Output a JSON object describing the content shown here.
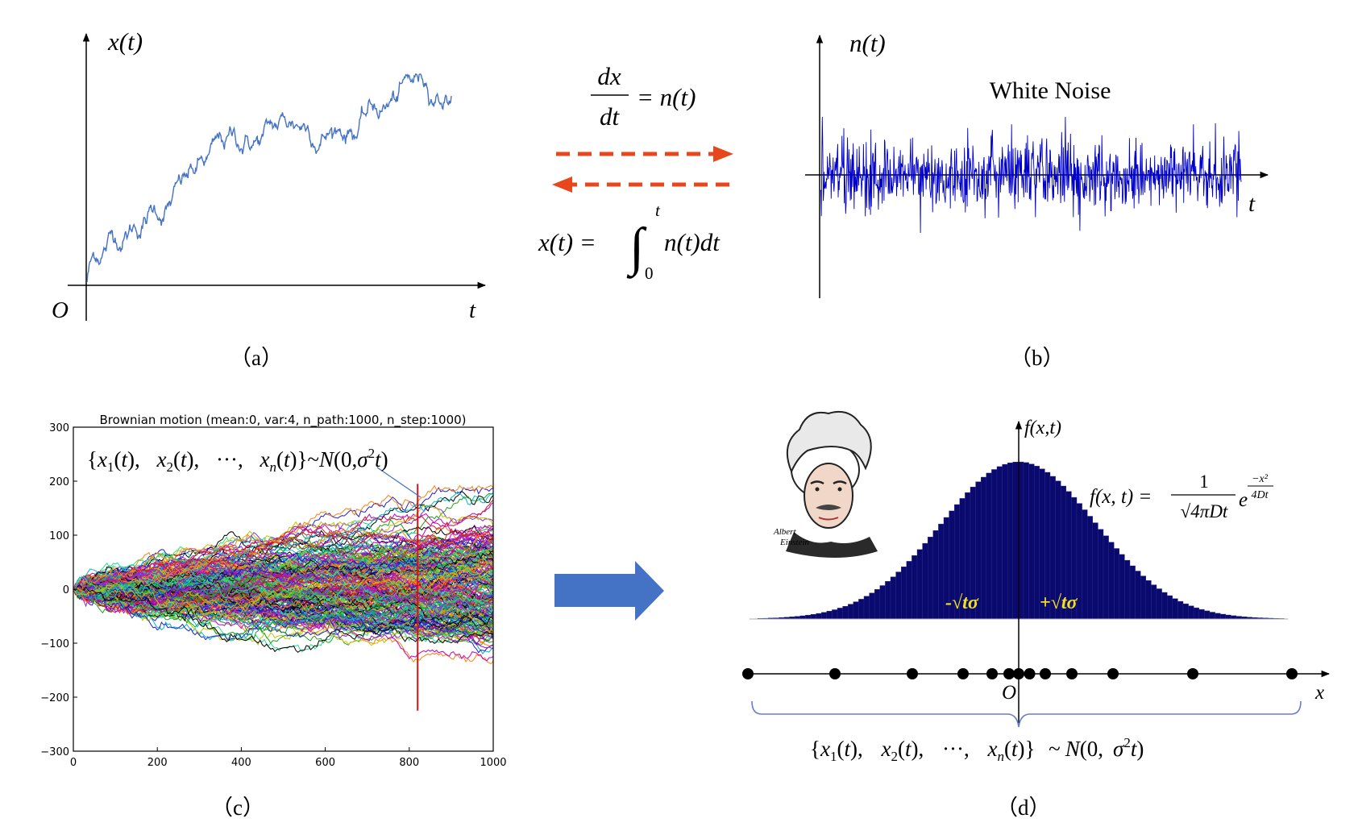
{
  "panels": {
    "a": {
      "caption": "（a）",
      "ylabel": "x(t)",
      "xlabel": "t",
      "origin": "O"
    },
    "b": {
      "caption": "（b）",
      "ylabel": "n(t)",
      "xlabel": "t",
      "title": "White Noise"
    },
    "relation": {
      "derivative_numerator": "dx",
      "derivative_denominator": "dt",
      "derivative_rhs": "= n(t)",
      "integral_lhs": "x(t) =",
      "integral_upper": "t",
      "integral_lower": "0",
      "integral_body": "n(t)dt"
    },
    "c": {
      "caption": "（c）",
      "title": "Brownian motion (mean:0, var:4, n_path:1000, n_step:1000)",
      "annotation": "{x1(t), x2(t), ..., xn(t)} ~ N(0, σ²t)",
      "xticks": [
        "0",
        "200",
        "400",
        "600",
        "800",
        "1000"
      ],
      "yticks": [
        "300",
        "200",
        "100",
        "0",
        "−100",
        "−200",
        "−300"
      ]
    },
    "d": {
      "caption": "（d）",
      "ylabel": "f(x,t)",
      "xlabel": "x",
      "origin": "O",
      "formula_lhs": "f(x, t) =",
      "formula_numerator": "1",
      "formula_denominator": "√4πDt",
      "formula_base": "e",
      "formula_exp_num": "−x²",
      "formula_exp_den": "4Dt",
      "minus_label": "-√tσ",
      "plus_label": "+√tσ",
      "bottom_formula": "{x1(t), x2(t), ..., xn(t)} ~ N(0, σ²t)",
      "portrait_signature_line1": "Albert",
      "portrait_signature_line2": "Einstein"
    }
  },
  "colors": {
    "path_blue": "#4472c4",
    "noise_blue": "#0000cc",
    "arrow_orange": "#e8461c",
    "big_arrow_blue": "#4472c4",
    "histogram_navy": "#0a0a6e",
    "sigma_yellow": "#f0e020",
    "marker_red": "#e01010",
    "brace_blue": "#6a7bd0"
  },
  "chart_data": [
    {
      "type": "line",
      "panel": "c",
      "title": "Brownian motion (mean:0, var:4, n_path:1000, n_step:1000)",
      "xlim": [
        0,
        1000
      ],
      "ylim": [
        -300,
        300
      ],
      "xticks": [
        0,
        200,
        400,
        600,
        800,
        1000
      ],
      "yticks": [
        -300,
        -200,
        -100,
        0,
        100,
        200,
        300
      ],
      "n_path": 1000,
      "n_step": 1000,
      "mean": 0,
      "var": 4,
      "marker_x": 820,
      "marker_range": [
        -225,
        195
      ]
    },
    {
      "type": "bar",
      "panel": "d",
      "distribution": "normal",
      "peak_location": 0,
      "dot_positions": [
        -11.2,
        -7.6,
        -4.4,
        -2.3,
        -1.1,
        -0.4,
        0,
        0.45,
        1.1,
        2.2,
        3.9,
        7.2,
        11.3
      ]
    }
  ]
}
